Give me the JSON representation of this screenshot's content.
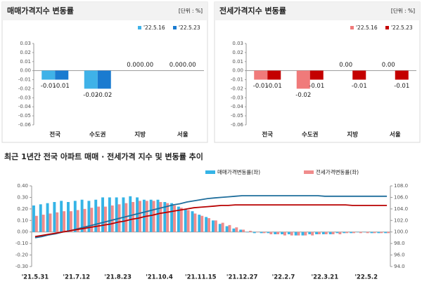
{
  "chart_data": [
    {
      "type": "bar",
      "title": "매매가격지수 변동률",
      "unit_label": "[단위 : %]",
      "categories": [
        "전국",
        "수도권",
        "지방",
        "서울"
      ],
      "series": [
        {
          "name": "'22.5.16",
          "color": "#3fb2e8",
          "values": [
            -0.01,
            -0.02,
            0,
            0
          ],
          "value_labels": [
            "-0.01",
            "-0.02",
            "0.00",
            "0.00"
          ]
        },
        {
          "name": "'22.5.23",
          "color": "#1a7bd0",
          "values": [
            -0.01,
            -0.02,
            0,
            0
          ],
          "value_labels": [
            "-0.01",
            "-0.02",
            "0.00",
            "0.00"
          ]
        }
      ],
      "ylim": [
        -0.06,
        0.03
      ],
      "yticks": [
        0.03,
        0.02,
        0.01,
        {
          "value": 0,
          "label": "0.00"
        },
        -0.01,
        -0.02,
        -0.03,
        -0.04,
        -0.05,
        -0.06
      ]
    },
    {
      "type": "bar",
      "title": "전세가격지수 변동률",
      "unit_label": "[단위 : %]",
      "categories": [
        "전국",
        "수도권",
        "지방",
        "서울"
      ],
      "series": [
        {
          "name": "'22.5.16",
          "color": "#f07a7a",
          "values": [
            -0.01,
            -0.02,
            0,
            0
          ],
          "value_labels": [
            "-0.01",
            "-0.02",
            "0.00",
            "0.00"
          ]
        },
        {
          "name": "'22.5.23",
          "color": "#c40000",
          "values": [
            -0.01,
            -0.01,
            -0.01,
            -0.01
          ],
          "value_labels": [
            "-0.01",
            "-0.01",
            "-0.01",
            "-0.01"
          ]
        }
      ],
      "ylim": [
        -0.06,
        0.03
      ],
      "yticks": [
        0.03,
        0.02,
        0.01,
        {
          "value": 0,
          "label": "0.00"
        },
        -0.01,
        -0.02,
        -0.03,
        -0.04,
        -0.05,
        -0.06
      ]
    },
    {
      "type": "combo",
      "title": "최근 1년간 전국 아파트 매매 · 전세가격 지수 및 변동률 추이",
      "categories": [
        "'21.5.31",
        null,
        null,
        null,
        null,
        null,
        "'21.7.12",
        null,
        null,
        null,
        null,
        null,
        "'21.8.23",
        null,
        null,
        null,
        null,
        null,
        "'21.10.4",
        null,
        null,
        null,
        null,
        null,
        "'21.11.15",
        null,
        null,
        null,
        null,
        null,
        "'21.12.27",
        null,
        null,
        null,
        null,
        null,
        "'22.2.7",
        null,
        null,
        null,
        null,
        null,
        "'22.3.21",
        null,
        null,
        null,
        null,
        null,
        "'22.5.2",
        null,
        null,
        null
      ],
      "series": [
        {
          "name": "매매가격변동률(좌)",
          "type": "bar",
          "color": "#35b4e6",
          "values": [
            0.23,
            0.24,
            0.25,
            0.26,
            0.27,
            0.26,
            0.27,
            0.28,
            0.27,
            0.28,
            0.3,
            0.3,
            0.3,
            0.3,
            0.31,
            0.3,
            0.28,
            0.28,
            0.28,
            0.26,
            0.25,
            0.22,
            0.2,
            0.18,
            0.15,
            0.13,
            0.1,
            0.07,
            0.05,
            0.03,
            0.02,
            0,
            -0.01,
            -0.01,
            -0.01,
            -0.02,
            -0.02,
            -0.02,
            -0.03,
            -0.03,
            -0.02,
            -0.02,
            -0.02,
            -0.02,
            -0.01,
            -0.01,
            -0.01,
            0,
            0,
            -0.01,
            -0.01,
            -0.01
          ]
        },
        {
          "name": "전세가격변동률(좌)",
          "type": "bar",
          "color": "#f08c8c",
          "values": [
            0.14,
            0.15,
            0.16,
            0.17,
            0.18,
            0.18,
            0.19,
            0.2,
            0.21,
            0.22,
            0.22,
            0.23,
            0.24,
            0.25,
            0.26,
            0.27,
            0.27,
            0.27,
            0.26,
            0.25,
            0.23,
            0.21,
            0.19,
            0.16,
            0.14,
            0.12,
            0.1,
            0.08,
            0.06,
            0.04,
            0.02,
            0.01,
            0,
            -0.01,
            -0.02,
            -0.02,
            -0.03,
            -0.03,
            -0.03,
            -0.03,
            -0.03,
            -0.02,
            -0.02,
            -0.02,
            -0.02,
            -0.01,
            -0.01,
            -0.01,
            -0.01,
            -0.01,
            -0.01,
            -0.01
          ]
        },
        {
          "type": "line",
          "axis": "y2",
          "color": "#1f6e9c",
          "values": [
            99.0,
            99.2,
            99.5,
            99.7,
            100.0,
            100.2,
            100.5,
            100.8,
            101.1,
            101.4,
            101.7,
            102.0,
            102.3,
            102.6,
            102.9,
            103.2,
            103.5,
            103.8,
            104.1,
            104.4,
            104.7,
            104.9,
            105.2,
            105.4,
            105.6,
            105.8,
            105.9,
            106.0,
            106.1,
            106.2,
            106.3,
            106.3,
            106.3,
            106.3,
            106.3,
            106.3,
            106.3,
            106.3,
            106.3,
            106.3,
            106.3,
            106.3,
            106.2,
            106.2,
            106.2,
            106.2,
            106.2,
            106.2,
            106.2,
            106.2,
            106.2,
            106.2
          ]
        },
        {
          "type": "line",
          "axis": "y2",
          "color": "#b80000",
          "values": [
            99.2,
            99.4,
            99.6,
            99.8,
            100.0,
            100.2,
            100.4,
            100.6,
            100.8,
            101.0,
            101.2,
            101.4,
            101.7,
            101.9,
            102.2,
            102.4,
            102.7,
            102.9,
            103.2,
            103.4,
            103.6,
            103.8,
            104.0,
            104.2,
            104.3,
            104.4,
            104.5,
            104.6,
            104.6,
            104.7,
            104.7,
            104.7,
            104.7,
            104.7,
            104.7,
            104.7,
            104.7,
            104.7,
            104.7,
            104.7,
            104.7,
            104.7,
            104.7,
            104.7,
            104.7,
            104.7,
            104.6,
            104.6,
            104.6,
            104.6,
            104.6,
            104.6
          ]
        }
      ],
      "ylim": [
        -0.3,
        0.4
      ],
      "yticks": [
        {
          "value": 0.4,
          "label": "0.40"
        },
        {
          "value": 0.3,
          "label": "0.30"
        },
        {
          "value": 0.2,
          "label": "0.20"
        },
        {
          "value": 0.1,
          "label": "0.10"
        },
        {
          "value": 0,
          "label": "0.00"
        },
        {
          "value": -0.1,
          "label": "-0.10"
        },
        {
          "value": -0.2,
          "label": "-0.20"
        },
        {
          "value": -0.3,
          "label": "-0.30"
        }
      ],
      "y2lim": [
        94,
        108
      ],
      "y2ticks": [
        {
          "value": 108,
          "label": "108.0"
        },
        {
          "value": 106,
          "label": "106.0"
        },
        {
          "value": 104,
          "label": "104.0"
        },
        {
          "value": 102,
          "label": "102.0"
        },
        {
          "value": 100,
          "label": "100.0"
        },
        {
          "value": 98,
          "label": "98.0"
        },
        {
          "value": 96,
          "label": "96.0"
        },
        {
          "value": 94,
          "label": "94.0"
        }
      ]
    }
  ]
}
